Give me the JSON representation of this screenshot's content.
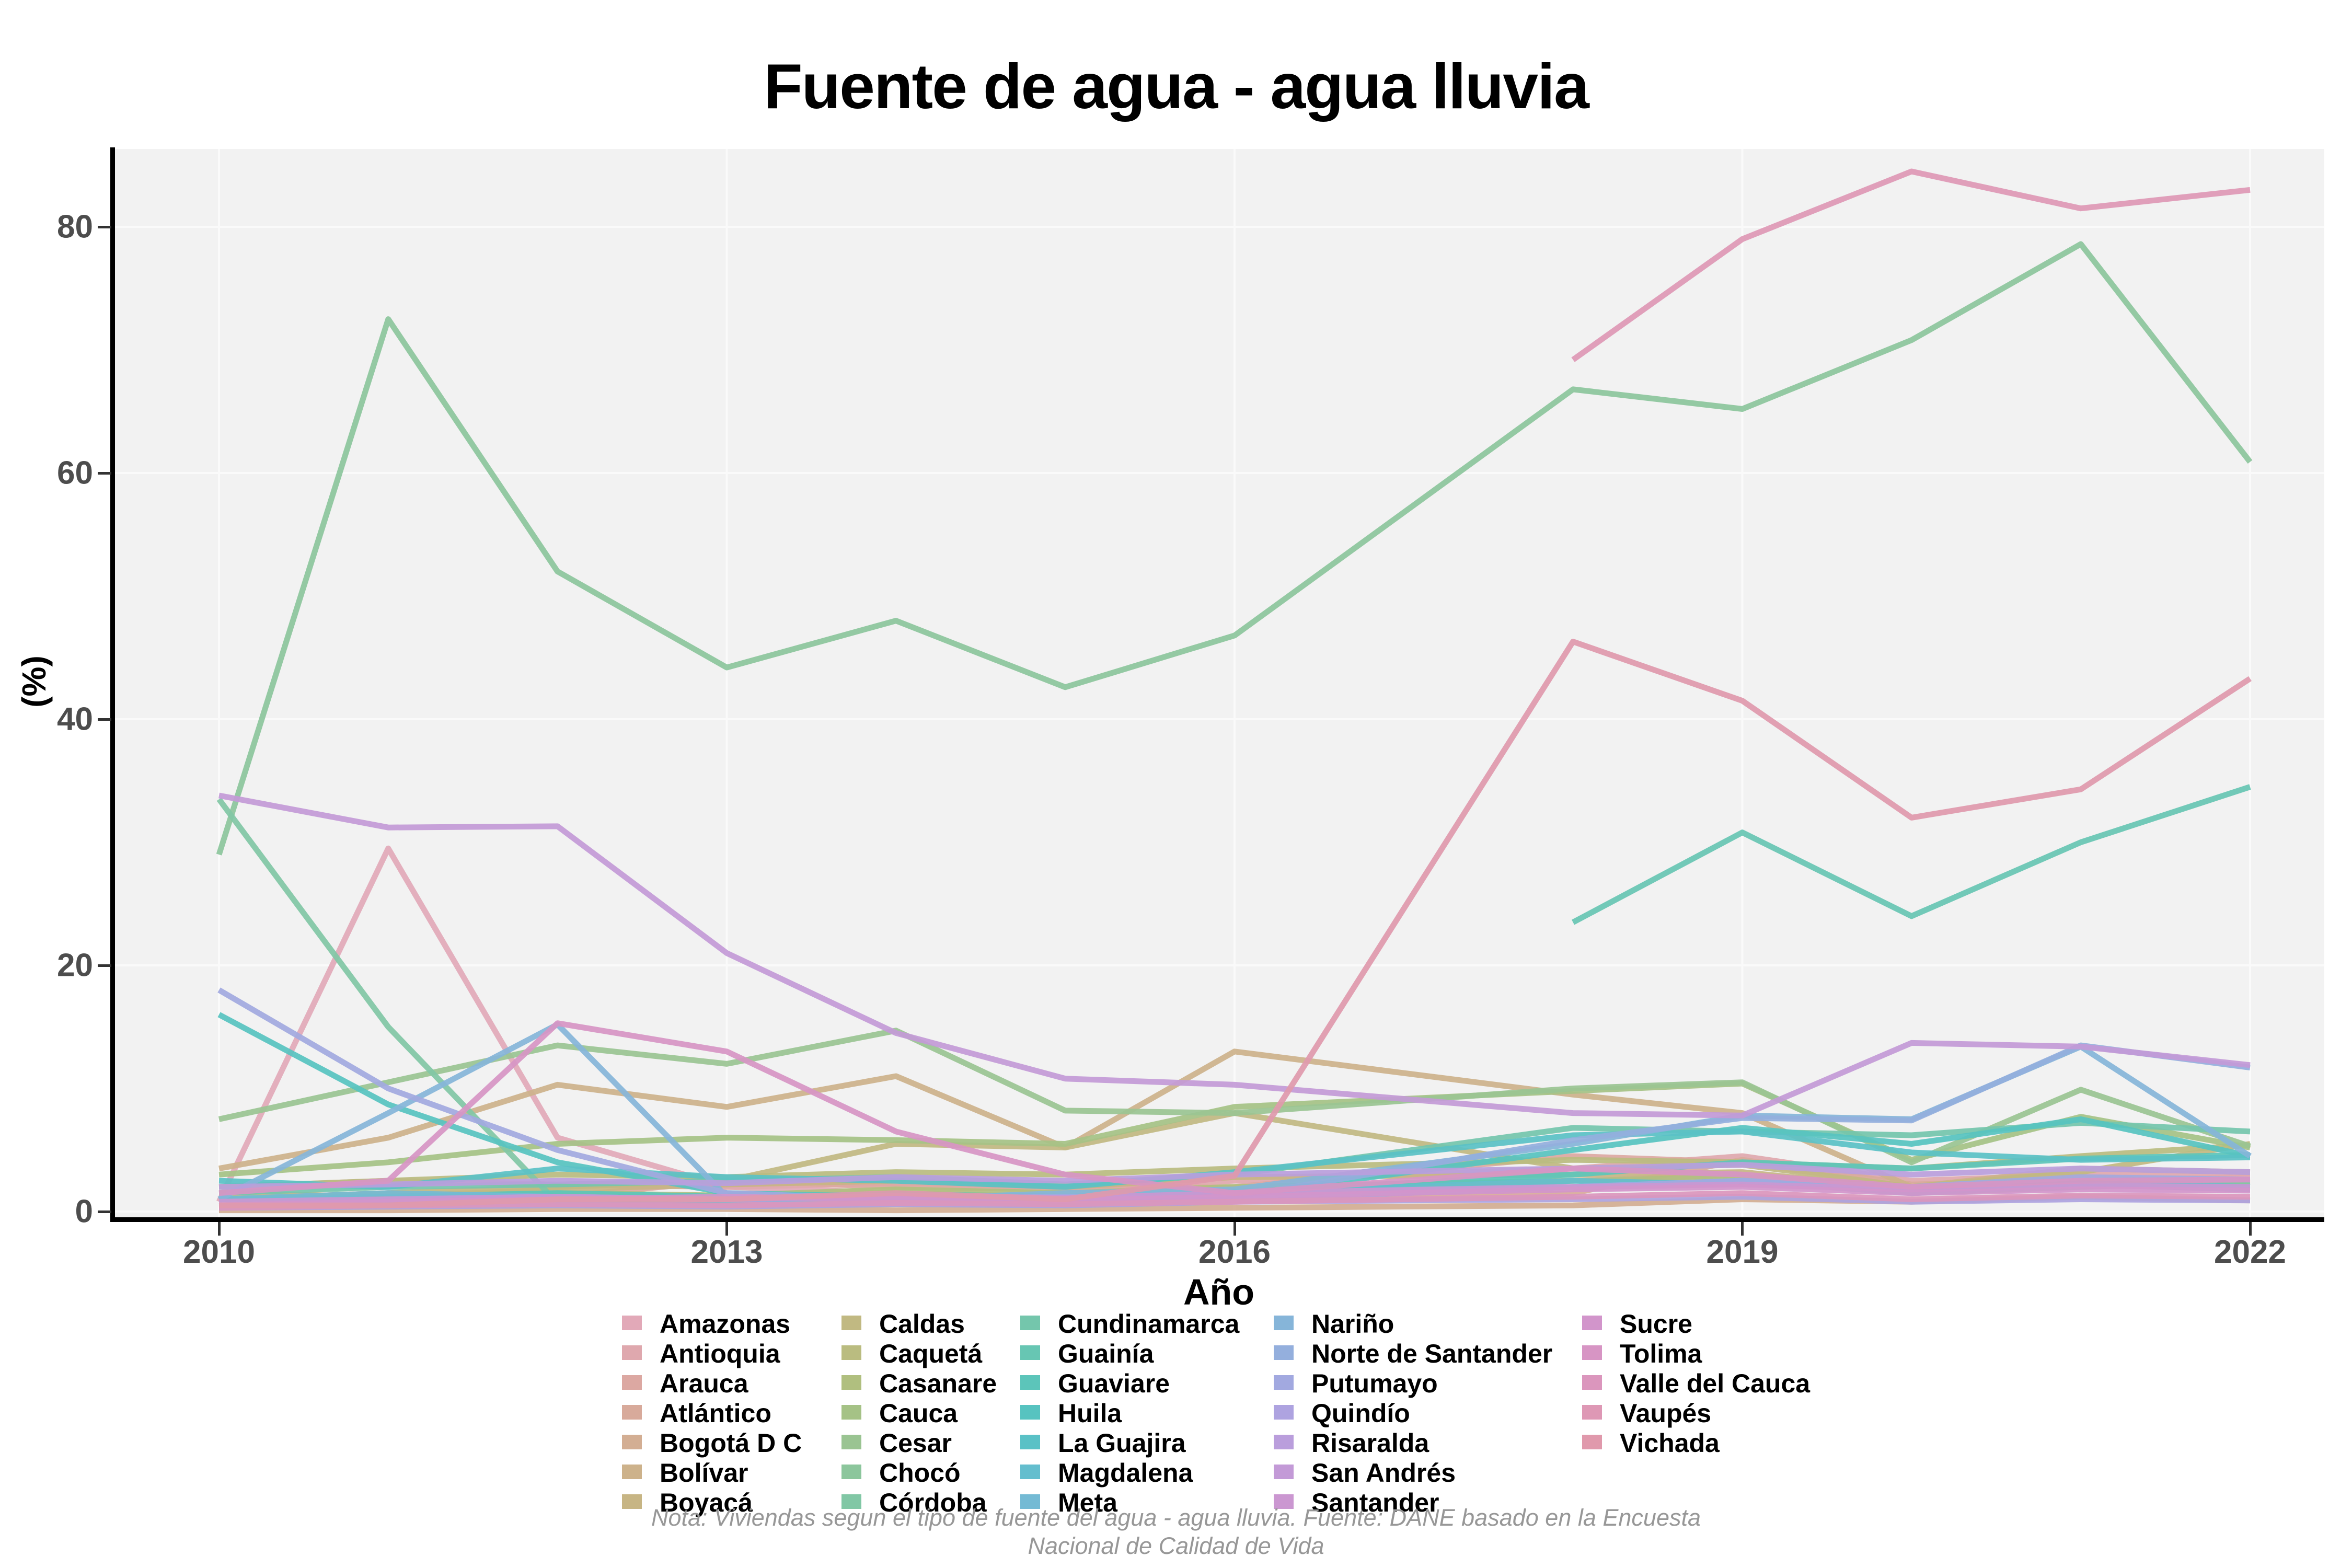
{
  "title": "Fuente de agua - agua lluvia",
  "footnote": {
    "line1": "Nota: Viviendas segun el tipo de fuente del agua - agua lluvia. Fuente: DANE basado en la Encuesta",
    "line2": "Nacional de Calidad de Vida"
  },
  "colors": {
    "panel_bg": "#f2f2f2",
    "grid": "#fafafa",
    "axis": "#000000",
    "tick_label": "#4d4d4d",
    "footnote": "#979797"
  },
  "chart_data": {
    "type": "line",
    "title": "Fuente de agua - agua lluvia",
    "xlabel": "Año",
    "ylabel": "(%)",
    "x": [
      2010,
      2011,
      2012,
      2013,
      2014,
      2015,
      2016,
      2018,
      2019,
      2020,
      2021,
      2022
    ],
    "x_ticks": [
      2010,
      2013,
      2016,
      2019,
      2022
    ],
    "y_ticks": [
      0,
      20,
      40,
      60,
      80
    ],
    "ylim": [
      0,
      86
    ],
    "xlim": [
      2009.4,
      2022.45
    ],
    "grid": true,
    "legend_position": "bottom",
    "series": [
      {
        "name": "Amazonas",
        "color": "#e2a9b8",
        "values": [
          0.8,
          29.5,
          6,
          2,
          1.5,
          1.2,
          1.5,
          2.5,
          3,
          2,
          2.5,
          2.8
        ]
      },
      {
        "name": "Antioquia",
        "color": "#dfa8ae",
        "values": [
          2,
          2.5,
          2.2,
          2,
          2.3,
          2,
          2.5,
          3.5,
          4.5,
          2.5,
          3,
          3.1
        ]
      },
      {
        "name": "Arauca",
        "color": "#dca8a2",
        "values": [
          1,
          1.5,
          1.2,
          2.5,
          2,
          1.8,
          2,
          4.5,
          4,
          2,
          2.8,
          2.3
        ]
      },
      {
        "name": "Atlántico",
        "color": "#d8aa9b",
        "values": [
          0.3,
          0.5,
          0.8,
          0.5,
          0.6,
          0.5,
          0.8,
          1.5,
          4.2,
          2.2,
          2.5,
          2.2
        ]
      },
      {
        "name": "Bogotá D C",
        "color": "#d3ae93",
        "values": [
          0.1,
          0.1,
          0.2,
          0.2,
          0.1,
          0.2,
          0.3,
          0.5,
          1,
          0.8,
          1.2,
          0.9
        ]
      },
      {
        "name": "Bolívar",
        "color": "#cdb28b",
        "values": [
          3.5,
          6,
          10.3,
          8.5,
          11,
          5.2,
          13,
          9.5,
          8,
          2,
          3.5,
          3.2
        ]
      },
      {
        "name": "Boyacá",
        "color": "#c7b584",
        "values": [
          1.5,
          1.2,
          1.8,
          2.2,
          2.5,
          2,
          2.8,
          3,
          3.2,
          1.8,
          2.2,
          2.1
        ]
      },
      {
        "name": "Caldas",
        "color": "#c1b982",
        "values": [
          1,
          1.5,
          2,
          2.5,
          5.5,
          5.2,
          8,
          3.5,
          3.8,
          2,
          3.2,
          5.5
        ]
      },
      {
        "name": "Caquetá",
        "color": "#babc80",
        "values": [
          2,
          2.5,
          3,
          2.8,
          3.2,
          3,
          3.5,
          4.2,
          4,
          3.5,
          4.5,
          5.4
        ]
      },
      {
        "name": "Casanare",
        "color": "#b0bf7f",
        "values": [
          1,
          1.2,
          1.5,
          1.3,
          1.8,
          1.5,
          2,
          2.5,
          2.8,
          2,
          2.5,
          2.4
        ]
      },
      {
        "name": "Cauca",
        "color": "#a5c286",
        "values": [
          3,
          4,
          5.5,
          6,
          5.8,
          5.5,
          8.5,
          9.8,
          10.4,
          4.2,
          7.7,
          5.2
        ]
      },
      {
        "name": "Cesar",
        "color": "#9ac492",
        "values": [
          7.5,
          10.5,
          13.5,
          12,
          14.7,
          8.2,
          8,
          10,
          10.5,
          4,
          9.9,
          5.3
        ]
      },
      {
        "name": "Chocó",
        "color": "#8cc69c",
        "values": [
          29,
          72.5,
          52,
          44.2,
          48,
          42.6,
          46.8,
          66.8,
          65.2,
          70.8,
          78.6,
          60.9
        ]
      },
      {
        "name": "Córdoba",
        "color": "#81c7a5",
        "values": [
          33.5,
          15,
          0.7,
          1,
          1.2,
          1,
          1.5,
          2,
          2.5,
          1.5,
          2,
          2.4
        ]
      },
      {
        "name": "Cundinamarca",
        "color": "#74c6ac",
        "values": [
          1.5,
          2,
          2.2,
          2.5,
          2.8,
          2.2,
          3,
          6.8,
          6.5,
          6.2,
          7.2,
          6.5
        ]
      },
      {
        "name": "Guainía",
        "color": "#67c6b3",
        "values": [
          null,
          null,
          null,
          null,
          null,
          null,
          null,
          23.5,
          30.8,
          24,
          30,
          34.5
        ]
      },
      {
        "name": "Guaviare",
        "color": "#5cc5ba",
        "values": [
          1,
          1.2,
          1.5,
          1.2,
          1.4,
          1.2,
          1.6,
          3,
          4,
          3.5,
          4.3,
          4.6
        ]
      },
      {
        "name": "Huila",
        "color": "#57c3c0",
        "values": [
          16,
          8.7,
          4,
          1.5,
          1.2,
          1,
          1.3,
          5,
          6.8,
          5.5,
          7.5,
          4.5
        ]
      },
      {
        "name": "La Guajira",
        "color": "#5ac1c6",
        "values": [
          2.5,
          2,
          3.5,
          2.8,
          2.5,
          2,
          3.2,
          6.2,
          6.5,
          4.8,
          4.2,
          4.4
        ]
      },
      {
        "name": "Magdalena",
        "color": "#64bece",
        "values": [
          0.5,
          0.8,
          1,
          0.8,
          1.2,
          1,
          1.5,
          2.5,
          2.2,
          1.8,
          2.3,
          2
        ]
      },
      {
        "name": "Meta",
        "color": "#74bad4",
        "values": [
          1,
          1.5,
          1.2,
          1,
          1.3,
          1.1,
          1.5,
          2,
          2.5,
          1.5,
          2.2,
          1.8
        ]
      },
      {
        "name": "Nariño",
        "color": "#86b5d9",
        "values": [
          1,
          8,
          15.2,
          1.2,
          1,
          1.5,
          1.8,
          5.5,
          7.8,
          7.5,
          13.4,
          4.5
        ]
      },
      {
        "name": "Norte de Santander",
        "color": "#94afdd",
        "values": [
          0.5,
          1,
          1.2,
          1,
          0.8,
          1,
          1.2,
          5.8,
          7.6,
          7.4,
          13.5,
          11.7
        ]
      },
      {
        "name": "Putumayo",
        "color": "#a2a9e0",
        "values": [
          18,
          10,
          5,
          1.5,
          1,
          1.2,
          1,
          2,
          2.5,
          2,
          2.8,
          2.6
        ]
      },
      {
        "name": "Quindío",
        "color": "#aea3e0",
        "values": [
          0.3,
          0.4,
          0.5,
          0.4,
          0.6,
          0.5,
          0.8,
          1,
          1.2,
          0.8,
          1,
          0.9
        ]
      },
      {
        "name": "Risaralda",
        "color": "#ba9edc",
        "values": [
          2,
          2.2,
          2.5,
          2.3,
          2.8,
          2.5,
          3,
          3.5,
          3.8,
          3,
          3.5,
          3.2
        ]
      },
      {
        "name": "San Andrés",
        "color": "#c39ad7",
        "values": [
          33.8,
          31.2,
          31.3,
          21,
          14.5,
          10.8,
          10.3,
          8,
          7.8,
          13.7,
          13.4,
          11.9
        ]
      },
      {
        "name": "Santander",
        "color": "#cb97d1",
        "values": [
          0.8,
          1,
          1.2,
          1,
          1.3,
          1.1,
          1.5,
          2,
          2.2,
          1.8,
          2.1,
          2
        ]
      },
      {
        "name": "Sucre",
        "color": "#d295cb",
        "values": [
          0.5,
          0.8,
          1,
          1.2,
          1,
          0.9,
          1.2,
          1.8,
          2,
          1.5,
          1.8,
          1.7
        ]
      },
      {
        "name": "Tolima",
        "color": "#d795c4",
        "values": [
          1.5,
          2.5,
          15.3,
          13,
          6.5,
          3,
          1.5,
          3.5,
          3,
          2,
          2.5,
          2.6
        ]
      },
      {
        "name": "Valle del Cauca",
        "color": "#db96bd",
        "values": [
          0.3,
          0.5,
          0.6,
          0.5,
          0.7,
          0.6,
          0.8,
          1.2,
          1.5,
          1,
          1.3,
          1.2
        ]
      },
      {
        "name": "Vaupés",
        "color": "#de98b5",
        "values": [
          null,
          null,
          null,
          null,
          null,
          null,
          null,
          69.2,
          79,
          84.5,
          81.5,
          83
        ]
      },
      {
        "name": "Vichada",
        "color": "#e099ac",
        "values": [
          0.5,
          0.5,
          1,
          1,
          1.5,
          1,
          2.9,
          46.3,
          41.5,
          32,
          34.3,
          43.3
        ]
      }
    ]
  }
}
